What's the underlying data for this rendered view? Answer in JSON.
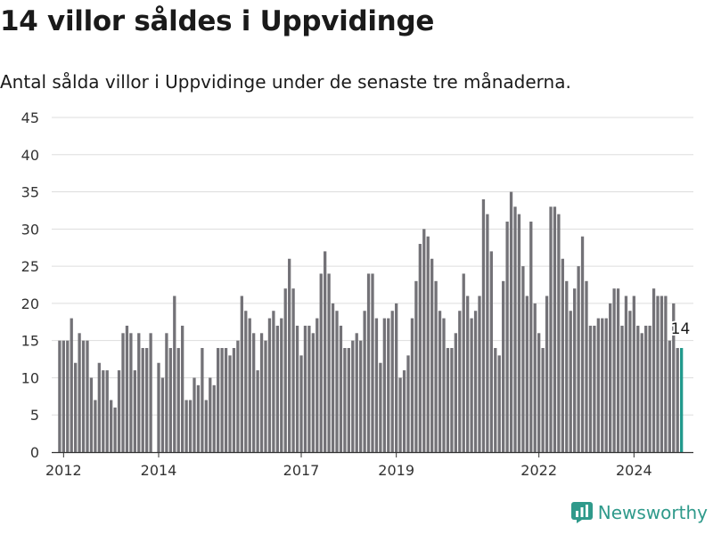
{
  "header": {
    "title": "14 villor såldes i Uppvidinge",
    "subtitle": "Antal sålda villor i Uppvidinge under de senaste tre månaderna."
  },
  "brand": {
    "name": "Newsworthy",
    "icon": "newsworthy-logo-icon",
    "color": "#2f9a8b"
  },
  "colors": {
    "bar": "#737277",
    "highlight": "#21998c",
    "grid": "#dddddd"
  },
  "chart_data": {
    "type": "bar",
    "title": "",
    "xlabel": "",
    "ylabel": "",
    "ylim": [
      0,
      45
    ],
    "yticks": [
      0,
      5,
      10,
      15,
      20,
      25,
      30,
      35,
      40,
      45
    ],
    "xlim": [
      "2011-10",
      "2025-04"
    ],
    "xticks": [
      {
        "label": "2012",
        "at": "2012-01"
      },
      {
        "label": "2014",
        "at": "2014-01"
      },
      {
        "label": "2017",
        "at": "2017-01"
      },
      {
        "label": "2019",
        "at": "2019-01"
      },
      {
        "label": "2022",
        "at": "2022-01"
      },
      {
        "label": "2024",
        "at": "2024-01"
      }
    ],
    "grid": true,
    "legend": "none",
    "start_month": "2011-12",
    "values": [
      15,
      15,
      15,
      18,
      12,
      16,
      15,
      15,
      10,
      7,
      12,
      11,
      11,
      7,
      6,
      11,
      16,
      17,
      16,
      11,
      16,
      14,
      14,
      16,
      null,
      12,
      10,
      16,
      14,
      21,
      14,
      17,
      7,
      7,
      10,
      9,
      14,
      7,
      10,
      9,
      14,
      14,
      14,
      13,
      14,
      15,
      21,
      19,
      18,
      16,
      11,
      16,
      15,
      18,
      19,
      17,
      18,
      22,
      26,
      22,
      17,
      13,
      17,
      17,
      16,
      18,
      24,
      27,
      24,
      20,
      19,
      17,
      14,
      14,
      15,
      16,
      15,
      19,
      24,
      24,
      18,
      12,
      18,
      18,
      19,
      20,
      10,
      11,
      13,
      18,
      23,
      28,
      30,
      29,
      26,
      23,
      19,
      18,
      14,
      14,
      16,
      19,
      24,
      21,
      18,
      19,
      21,
      34,
      32,
      27,
      14,
      13,
      23,
      31,
      35,
      33,
      32,
      25,
      21,
      31,
      20,
      16,
      14,
      21,
      33,
      33,
      32,
      26,
      23,
      19,
      22,
      25,
      29,
      23,
      17,
      17,
      18,
      18,
      18,
      20,
      22,
      22,
      17,
      21,
      19,
      21,
      17,
      16,
      17,
      17,
      22,
      21,
      21,
      21,
      15,
      20,
      14,
      14
    ],
    "highlight_last": 1,
    "annotation": {
      "label": "14"
    }
  }
}
